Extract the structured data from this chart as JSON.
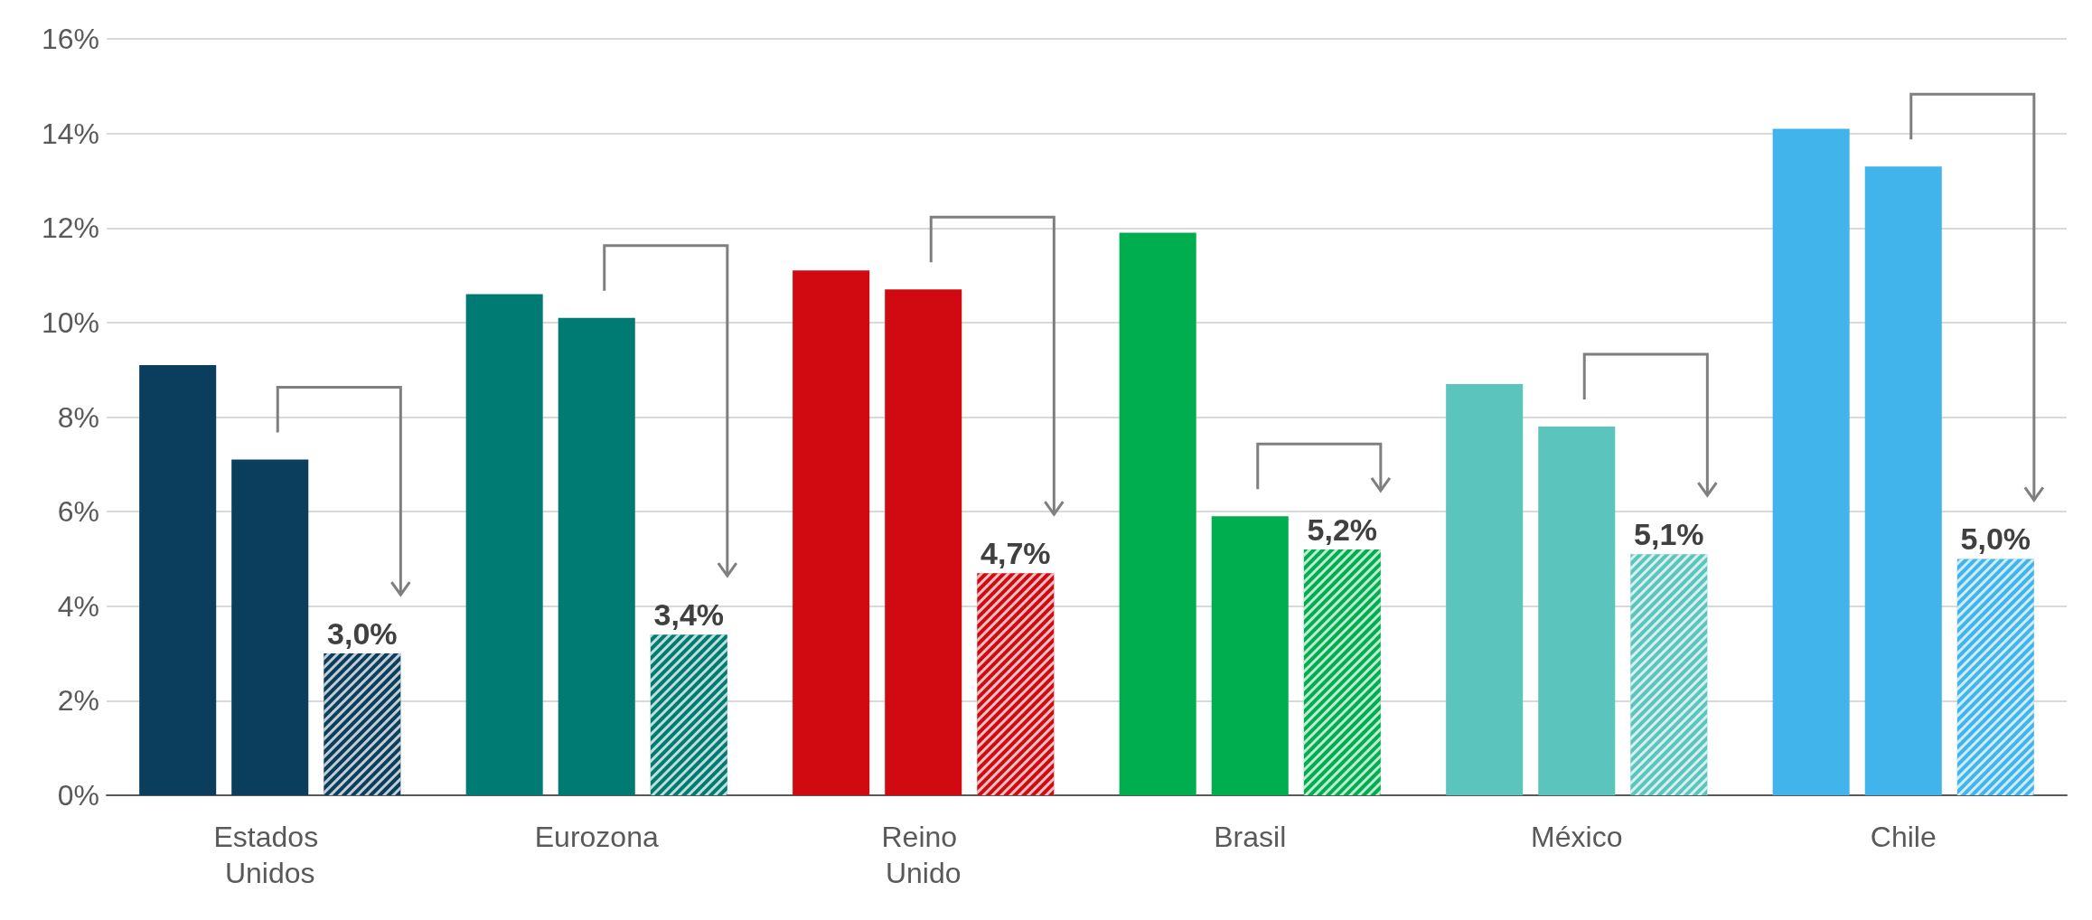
{
  "chart_data": {
    "type": "bar",
    "categories": [
      "Estados Unidos",
      "Eurozona",
      "Reino Unido",
      "Brasil",
      "México",
      "Chile"
    ],
    "series": [
      {
        "colors": [
          "#0b3d5c",
          "#007b73",
          "#d10a11",
          "#00ae4f",
          "#5bc4bd",
          "#41b4ec"
        ],
        "values": [
          9.1,
          10.6,
          11.1,
          11.9,
          8.7,
          14.1
        ]
      },
      {
        "colors": [
          "#0b3d5c",
          "#007b73",
          "#d10a11",
          "#00ae4f",
          "#5bc4bd",
          "#41b4ec"
        ],
        "values": [
          7.1,
          10.1,
          10.7,
          5.9,
          7.8,
          13.3
        ]
      },
      {
        "colors": [
          "#0b3d5c",
          "#007b73",
          "#d10a11",
          "#00ae4f",
          "#5bc4bd",
          "#41b4ec"
        ],
        "values": [
          3.0,
          3.4,
          4.7,
          5.2,
          5.1,
          5.0
        ],
        "value_labels": [
          "3,0%",
          "3,4%",
          "4,7%",
          "5,2%",
          "5,1%",
          "5,0%"
        ]
      }
    ],
    "ylim": [
      0,
      16
    ],
    "yticks": [
      {
        "value": 0,
        "label": "0%"
      },
      {
        "value": 2,
        "label": "2%"
      },
      {
        "value": 4,
        "label": "4%"
      },
      {
        "value": 6,
        "label": "6%"
      },
      {
        "value": 8,
        "label": "8%"
      },
      {
        "value": 10,
        "label": "10%"
      },
      {
        "value": 12,
        "label": "12%"
      },
      {
        "value": 14,
        "label": "14%"
      },
      {
        "value": 16,
        "label": "16%"
      }
    ],
    "grid": "y"
  }
}
